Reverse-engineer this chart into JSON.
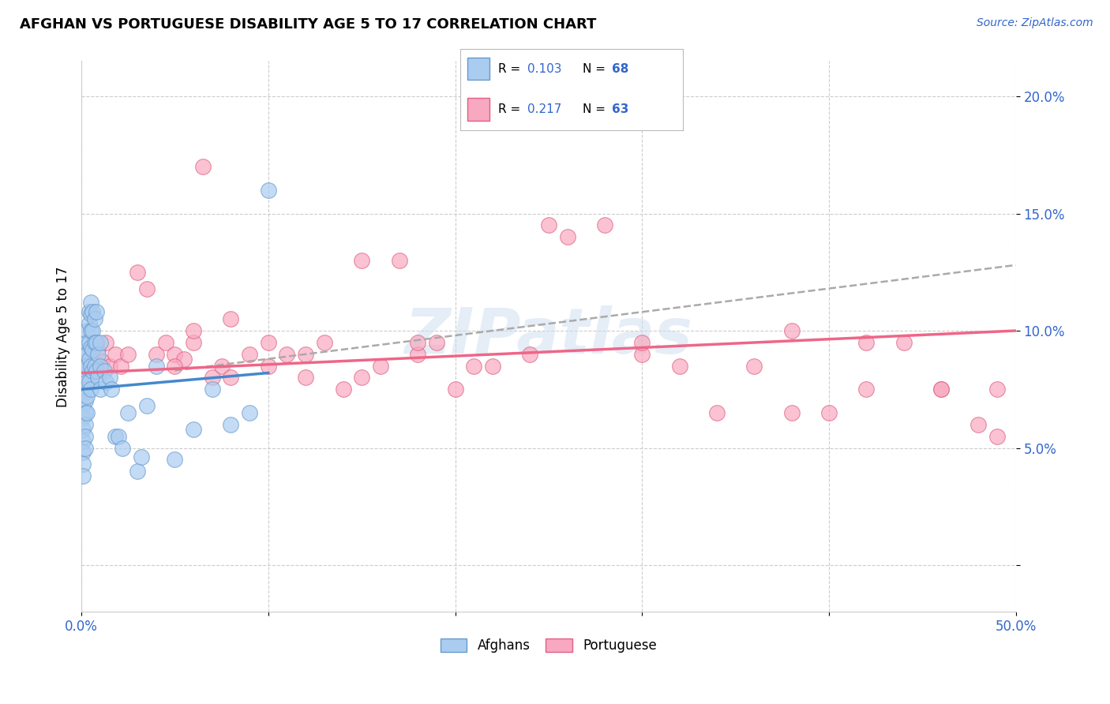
{
  "title": "AFGHAN VS PORTUGUESE DISABILITY AGE 5 TO 17 CORRELATION CHART",
  "source": "Source: ZipAtlas.com",
  "ylabel_label": "Disability Age 5 to 17",
  "x_min": 0.0,
  "x_max": 0.5,
  "y_min": -0.02,
  "y_max": 0.215,
  "x_ticks_major": [
    0.0,
    0.5
  ],
  "x_ticks_minor": [
    0.1,
    0.2,
    0.3,
    0.4
  ],
  "y_ticks": [
    0.0,
    0.05,
    0.1,
    0.15,
    0.2
  ],
  "y_tick_labels": [
    "",
    "5.0%",
    "10.0%",
    "15.0%",
    "20.0%"
  ],
  "afghan_color": "#aaccf0",
  "portuguese_color": "#f8a8c0",
  "afghan_edge_color": "#6699cc",
  "portuguese_edge_color": "#e06080",
  "afghan_line_color": "#4488cc",
  "portuguese_line_color": "#ee6688",
  "trendline_dash_color": "#aaaaaa",
  "watermark": "ZIPatlas",
  "afghan_R": 0.103,
  "afghan_N": 68,
  "portuguese_R": 0.217,
  "portuguese_N": 63,
  "afghan_x": [
    0.001,
    0.001,
    0.001,
    0.001,
    0.001,
    0.001,
    0.001,
    0.001,
    0.002,
    0.002,
    0.002,
    0.002,
    0.002,
    0.002,
    0.002,
    0.002,
    0.002,
    0.003,
    0.003,
    0.003,
    0.003,
    0.003,
    0.003,
    0.003,
    0.004,
    0.004,
    0.004,
    0.004,
    0.004,
    0.005,
    0.005,
    0.005,
    0.005,
    0.005,
    0.005,
    0.006,
    0.006,
    0.006,
    0.006,
    0.007,
    0.007,
    0.007,
    0.008,
    0.008,
    0.008,
    0.009,
    0.009,
    0.01,
    0.01,
    0.01,
    0.012,
    0.013,
    0.015,
    0.016,
    0.018,
    0.02,
    0.022,
    0.025,
    0.03,
    0.032,
    0.035,
    0.04,
    0.05,
    0.06,
    0.07,
    0.08,
    0.09,
    0.1
  ],
  "afghan_y": [
    0.073,
    0.068,
    0.063,
    0.058,
    0.053,
    0.048,
    0.043,
    0.038,
    0.09,
    0.085,
    0.08,
    0.075,
    0.07,
    0.065,
    0.06,
    0.055,
    0.05,
    0.1,
    0.095,
    0.09,
    0.085,
    0.078,
    0.072,
    0.065,
    0.108,
    0.103,
    0.095,
    0.088,
    0.078,
    0.112,
    0.107,
    0.1,
    0.093,
    0.085,
    0.075,
    0.108,
    0.1,
    0.092,
    0.083,
    0.105,
    0.095,
    0.085,
    0.108,
    0.095,
    0.083,
    0.09,
    0.08,
    0.095,
    0.085,
    0.075,
    0.083,
    0.078,
    0.08,
    0.075,
    0.055,
    0.055,
    0.05,
    0.065,
    0.04,
    0.046,
    0.068,
    0.085,
    0.045,
    0.058,
    0.075,
    0.06,
    0.065,
    0.16
  ],
  "portuguese_x": [
    0.001,
    0.003,
    0.005,
    0.007,
    0.009,
    0.011,
    0.013,
    0.015,
    0.018,
    0.021,
    0.025,
    0.03,
    0.035,
    0.04,
    0.045,
    0.05,
    0.055,
    0.06,
    0.065,
    0.07,
    0.075,
    0.08,
    0.09,
    0.1,
    0.11,
    0.12,
    0.13,
    0.14,
    0.15,
    0.16,
    0.17,
    0.18,
    0.19,
    0.2,
    0.21,
    0.22,
    0.24,
    0.26,
    0.28,
    0.3,
    0.32,
    0.34,
    0.36,
    0.38,
    0.4,
    0.42,
    0.44,
    0.46,
    0.48,
    0.49,
    0.05,
    0.06,
    0.08,
    0.1,
    0.12,
    0.15,
    0.18,
    0.25,
    0.3,
    0.38,
    0.42,
    0.46,
    0.49
  ],
  "portuguese_y": [
    0.085,
    0.08,
    0.088,
    0.083,
    0.092,
    0.087,
    0.095,
    0.085,
    0.09,
    0.085,
    0.09,
    0.125,
    0.118,
    0.09,
    0.095,
    0.09,
    0.088,
    0.095,
    0.17,
    0.08,
    0.085,
    0.105,
    0.09,
    0.085,
    0.09,
    0.09,
    0.095,
    0.075,
    0.08,
    0.085,
    0.13,
    0.09,
    0.095,
    0.075,
    0.085,
    0.085,
    0.09,
    0.14,
    0.145,
    0.09,
    0.085,
    0.065,
    0.085,
    0.1,
    0.065,
    0.075,
    0.095,
    0.075,
    0.06,
    0.055,
    0.085,
    0.1,
    0.08,
    0.095,
    0.08,
    0.13,
    0.095,
    0.145,
    0.095,
    0.065,
    0.095,
    0.075,
    0.075
  ],
  "afghan_trendline": [
    0.0,
    0.068,
    0.1,
    0.082
  ],
  "portuguese_trendline_start_x": 0.0,
  "portuguese_trendline_start_y": 0.082,
  "portuguese_trendline_end_x": 0.5,
  "portuguese_trendline_end_y": 0.1,
  "dash_trendline_start_x": 0.05,
  "dash_trendline_start_y": 0.083,
  "dash_trendline_end_x": 0.5,
  "dash_trendline_end_y": 0.128
}
